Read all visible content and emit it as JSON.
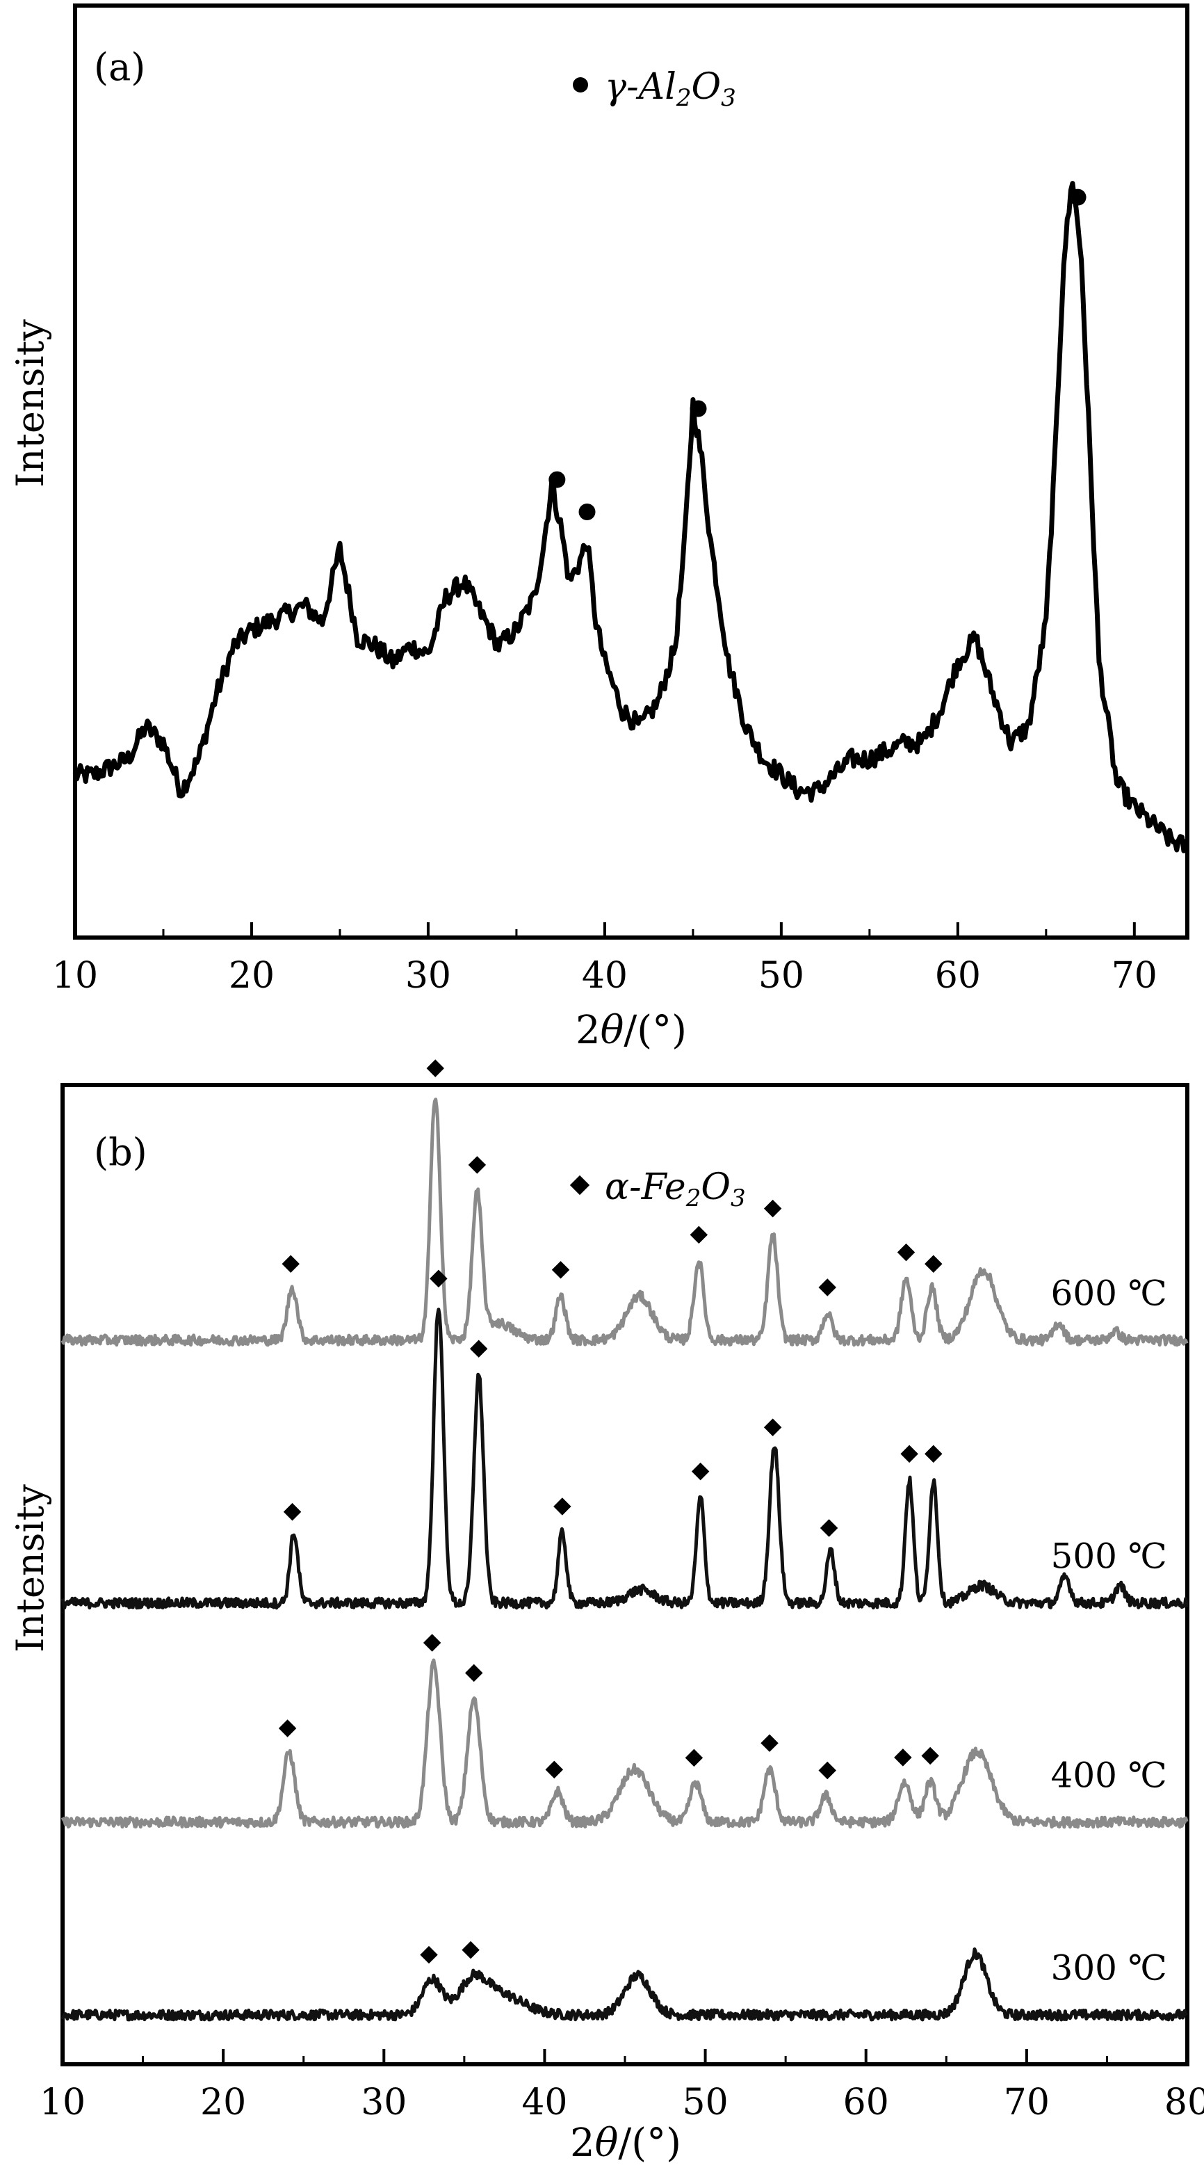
{
  "chart_data": [
    {
      "type": "line",
      "panel_label": "(a)",
      "legend": {
        "marker": "circle",
        "text_prefix": "γ-Al",
        "sub1": "2",
        "mid": "O",
        "sub2": "3",
        "placement": "top-center"
      },
      "xlabel_prefix": "2",
      "xlabel_theta": "θ",
      "xlabel_suffix": "/(°)",
      "ylabel": "Intensity",
      "xlim": [
        10,
        73
      ],
      "ylim": [
        0,
        100
      ],
      "x_ticks": [
        10,
        20,
        30,
        40,
        50,
        60,
        70
      ],
      "series": [
        {
          "color": "#000000",
          "x": [
            10,
            11,
            12,
            13,
            14,
            15,
            16,
            17,
            18,
            19,
            20,
            21,
            22,
            23,
            24,
            25,
            26,
            27,
            28,
            29,
            30,
            31,
            32,
            33,
            34,
            35,
            36,
            36.5,
            37,
            37.5,
            38,
            38.5,
            39,
            39.5,
            40,
            41,
            42,
            43,
            44,
            44.5,
            45,
            45.5,
            46,
            47,
            48,
            49,
            50,
            51,
            52,
            53,
            54,
            55,
            56,
            57,
            58,
            59,
            60,
            61,
            62,
            63,
            64,
            65,
            65.5,
            66,
            66.5,
            67,
            67.5,
            68,
            69,
            70,
            71,
            72,
            73
          ],
          "values": [
            16,
            16,
            17,
            18,
            22,
            20,
            14,
            18,
            26,
            32,
            34,
            35,
            36,
            37,
            35,
            44,
            33,
            32,
            30,
            32,
            31,
            38,
            40,
            36,
            32,
            34,
            38,
            44,
            52,
            47,
            40,
            42,
            45,
            35,
            30,
            24,
            22,
            25,
            32,
            44,
            62,
            55,
            45,
            30,
            22,
            18,
            16,
            14,
            14,
            16,
            18,
            18,
            19,
            20,
            20,
            24,
            30,
            33,
            26,
            20,
            22,
            35,
            55,
            80,
            90,
            80,
            55,
            30,
            15,
            12,
            10,
            8,
            7
          ]
        }
      ],
      "peak_markers_x": [
        37.3,
        39.0,
        45.3,
        66.8
      ]
    },
    {
      "type": "line",
      "panel_label": "(b)",
      "legend": {
        "marker": "diamond",
        "text_prefix": "α-Fe",
        "sub1": "2",
        "mid": "O",
        "sub2": "3",
        "placement": "top-center"
      },
      "xlabel_prefix": "2",
      "xlabel_theta": "θ",
      "xlabel_suffix": "/(°)",
      "ylabel": "Intensity",
      "xlim": [
        10,
        80
      ],
      "ylim": [
        0,
        100
      ],
      "x_ticks": [
        10,
        20,
        30,
        40,
        50,
        60,
        70,
        80
      ],
      "series": [
        {
          "name": "300 ℃",
          "color": "#111111",
          "baseline": 5,
          "peaks": [
            [
              33.0,
              4.0,
              0.6
            ],
            [
              35.5,
              3.0,
              0.8
            ],
            [
              37.0,
              2.5,
              1.5
            ],
            [
              45.8,
              4.5,
              0.8
            ],
            [
              66.8,
              7.0,
              0.7
            ]
          ],
          "markers_x": [
            32.8,
            35.4
          ]
        },
        {
          "name": "400 ℃",
          "color": "#8a8a8a",
          "baseline": 27,
          "peaks": [
            [
              24.1,
              8,
              0.35
            ],
            [
              33.1,
              18,
              0.4
            ],
            [
              35.6,
              14,
              0.4
            ],
            [
              40.8,
              3.5,
              0.35
            ],
            [
              45.6,
              6,
              0.9
            ],
            [
              49.4,
              4.5,
              0.35
            ],
            [
              54.0,
              6,
              0.35
            ],
            [
              57.5,
              3,
              0.35
            ],
            [
              62.4,
              4.5,
              0.4
            ],
            [
              64.0,
              4.5,
              0.35
            ],
            [
              66.9,
              8,
              0.9
            ]
          ],
          "markers_x": [
            24.0,
            33.0,
            35.6,
            40.6,
            49.3,
            54.0,
            57.6,
            62.3,
            64.0
          ]
        },
        {
          "name": "500 ℃",
          "color": "#111111",
          "baseline": 52,
          "peaks": [
            [
              24.4,
              8,
              0.25
            ],
            [
              33.4,
              34,
              0.3
            ],
            [
              35.9,
              26,
              0.3
            ],
            [
              41.1,
              8,
              0.25
            ],
            [
              46.0,
              1.5,
              0.8
            ],
            [
              49.7,
              12,
              0.25
            ],
            [
              54.3,
              18,
              0.3
            ],
            [
              57.8,
              6,
              0.25
            ],
            [
              62.7,
              14,
              0.25
            ],
            [
              64.2,
              14,
              0.25
            ],
            [
              67.2,
              2,
              0.8
            ],
            [
              72.4,
              3,
              0.3
            ],
            [
              75.8,
              2,
              0.3
            ]
          ],
          "markers_x": [
            24.3,
            33.4,
            35.9,
            41.1,
            49.7,
            54.2,
            57.7,
            62.7,
            64.2
          ]
        },
        {
          "name": "600 ℃",
          "color": "#8a8a8a",
          "baseline": 82,
          "peaks": [
            [
              24.3,
              6,
              0.3
            ],
            [
              33.2,
              28,
              0.3
            ],
            [
              35.8,
              16,
              0.3
            ],
            [
              37.0,
              2,
              1.0
            ],
            [
              41.0,
              5,
              0.3
            ],
            [
              45.9,
              5,
              0.8
            ],
            [
              49.6,
              9,
              0.3
            ],
            [
              54.2,
              12,
              0.3
            ],
            [
              57.6,
              3,
              0.3
            ],
            [
              62.5,
              7,
              0.3
            ],
            [
              64.1,
              6,
              0.3
            ],
            [
              67.3,
              8,
              0.8
            ],
            [
              72.0,
              2,
              0.3
            ],
            [
              75.5,
              1,
              0.3
            ]
          ],
          "markers_x": [
            24.2,
            33.2,
            35.8,
            41.0,
            49.6,
            54.2,
            57.6,
            62.5,
            64.2
          ]
        }
      ]
    }
  ]
}
